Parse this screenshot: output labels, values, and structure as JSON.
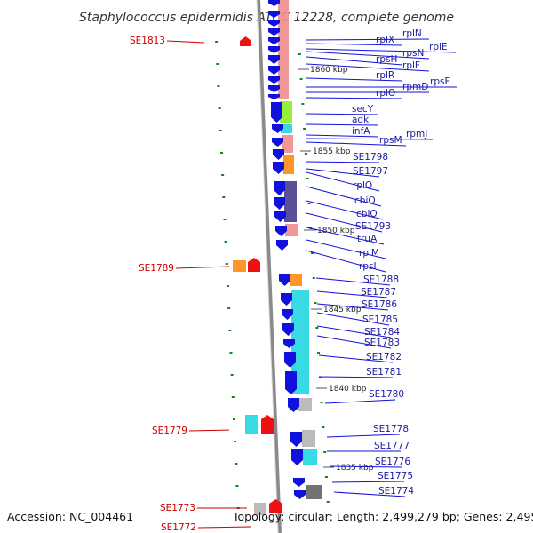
{
  "title": "Staphylococcus epidermidis ATCC 12228, complete genome",
  "footer": {
    "accession": "Accession: NC_004461",
    "topology": "Topology: circular; Length: 2,499,279 bp; Genes: 2,495"
  },
  "ruler": [
    "1860 kbp",
    "1855 kbp",
    "1850 kbp",
    "1845 kbp",
    "1840 kbp",
    "1835 kbp"
  ],
  "colors": {
    "forward_gene": "#ee1111",
    "reverse_gene": "#1111dd",
    "cog_pink": "#ee8c8c",
    "cog_orange": "#ff8c11",
    "cog_green": "#88ee22",
    "cog_cyan": "#22d6e0",
    "cog_purple": "#4b3c8c",
    "cog_gray": "#b4b4b4",
    "cog_dark_gray": "#646464",
    "label_line": "#1111dd",
    "dot_green": "#118811"
  },
  "right_labels": [
    "rplN",
    "rplX",
    "rplE",
    "rpsN",
    "rpsH",
    "rplF",
    "rplR",
    "rpsE",
    "rpmD",
    "rplO",
    "secY",
    "adk",
    "infA",
    "rpmJ",
    "rpsM",
    "SE1798",
    "SE1797",
    "rplQ",
    "cbiO",
    "cbiO",
    "SE1793",
    "truA",
    "rplM",
    "rpsI",
    "SE1788",
    "SE1787",
    "SE1786",
    "SE1785",
    "SE1784",
    "SE1783",
    "SE1782",
    "SE1781",
    "SE1780",
    "SE1778",
    "SE1777",
    "SE1776",
    "SE1775",
    "SE1774"
  ],
  "left_labels": [
    "SE1813",
    "SE1789",
    "SE1779",
    "SE1773",
    "SE1772"
  ]
}
